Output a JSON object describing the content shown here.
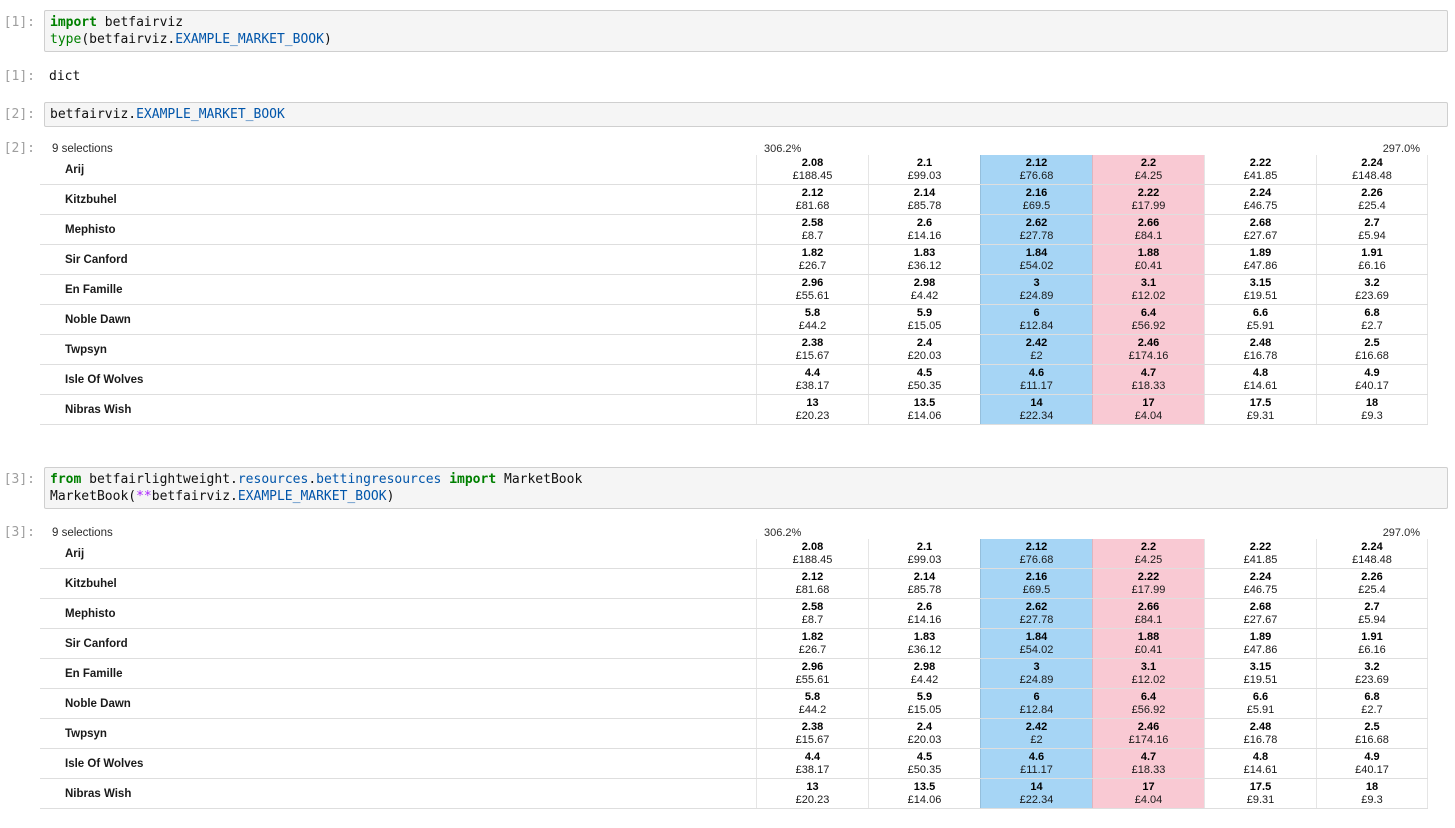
{
  "colors": {
    "back_best_cell": "#a6d5f5",
    "lay_best_cell": "#f9c9d3",
    "keyword_green": "#008000",
    "property_blue": "#0055aa",
    "operator_purple": "#aa22ff"
  },
  "notebook": {
    "cells": [
      {
        "kind": "code",
        "prompt": "[1]:",
        "code_lines": [
          [
            {
              "t": "import",
              "s": "kw"
            },
            {
              "t": " betfairviz",
              "s": "pl"
            }
          ],
          [
            {
              "t": "type",
              "s": "bi"
            },
            {
              "t": "(betfairviz.",
              "s": "pl"
            },
            {
              "t": "EXAMPLE_MARKET_BOOK",
              "s": "prop"
            },
            {
              "t": ")",
              "s": "pl"
            }
          ]
        ]
      },
      {
        "kind": "text_output",
        "prompt": "[1]:",
        "text": "dict"
      },
      {
        "kind": "code",
        "prompt": "[2]:",
        "code_lines": [
          [
            {
              "t": "betfairviz.",
              "s": "pl"
            },
            {
              "t": "EXAMPLE_MARKET_BOOK",
              "s": "prop"
            }
          ]
        ]
      },
      {
        "kind": "market_output",
        "prompt": "[2]:",
        "market": 0
      },
      {
        "kind": "code",
        "prompt": "[3]:",
        "code_lines": [
          [
            {
              "t": "from",
              "s": "kw"
            },
            {
              "t": " betfairlightweight.",
              "s": "pl"
            },
            {
              "t": "resources",
              "s": "prop"
            },
            {
              "t": ".",
              "s": "pl"
            },
            {
              "t": "bettingresources",
              "s": "prop"
            },
            {
              "t": " ",
              "s": "pl"
            },
            {
              "t": "import",
              "s": "kw"
            },
            {
              "t": " MarketBook",
              "s": "pl"
            }
          ],
          [
            {
              "t": "MarketBook(",
              "s": "pl"
            },
            {
              "t": "**",
              "s": "op"
            },
            {
              "t": "betfairviz.",
              "s": "pl"
            },
            {
              "t": "EXAMPLE_MARKET_BOOK",
              "s": "prop"
            },
            {
              "t": ")",
              "s": "pl"
            }
          ]
        ]
      },
      {
        "kind": "market_output",
        "prompt": "[3]:",
        "market": 0
      }
    ],
    "markets": [
      {
        "selections_label": "9 selections",
        "back_overround": "306.2%",
        "lay_overround": "297.0%",
        "column_styles": [
          "back-3",
          "back-2",
          "back-best",
          "lay-best",
          "lay-2",
          "lay-3"
        ],
        "runners": [
          {
            "name": "Arij",
            "ladder": [
              {
                "price": "2.08",
                "size": "£188.45"
              },
              {
                "price": "2.1",
                "size": "£99.03"
              },
              {
                "price": "2.12",
                "size": "£76.68"
              },
              {
                "price": "2.2",
                "size": "£4.25"
              },
              {
                "price": "2.22",
                "size": "£41.85"
              },
              {
                "price": "2.24",
                "size": "£148.48"
              }
            ]
          },
          {
            "name": "Kitzbuhel",
            "ladder": [
              {
                "price": "2.12",
                "size": "£81.68"
              },
              {
                "price": "2.14",
                "size": "£85.78"
              },
              {
                "price": "2.16",
                "size": "£69.5"
              },
              {
                "price": "2.22",
                "size": "£17.99"
              },
              {
                "price": "2.24",
                "size": "£46.75"
              },
              {
                "price": "2.26",
                "size": "£25.4"
              }
            ]
          },
          {
            "name": "Mephisto",
            "ladder": [
              {
                "price": "2.58",
                "size": "£8.7"
              },
              {
                "price": "2.6",
                "size": "£14.16"
              },
              {
                "price": "2.62",
                "size": "£27.78"
              },
              {
                "price": "2.66",
                "size": "£84.1"
              },
              {
                "price": "2.68",
                "size": "£27.67"
              },
              {
                "price": "2.7",
                "size": "£5.94"
              }
            ]
          },
          {
            "name": "Sir Canford",
            "ladder": [
              {
                "price": "1.82",
                "size": "£26.7"
              },
              {
                "price": "1.83",
                "size": "£36.12"
              },
              {
                "price": "1.84",
                "size": "£54.02"
              },
              {
                "price": "1.88",
                "size": "£0.41"
              },
              {
                "price": "1.89",
                "size": "£47.86"
              },
              {
                "price": "1.91",
                "size": "£6.16"
              }
            ]
          },
          {
            "name": "En Famille",
            "ladder": [
              {
                "price": "2.96",
                "size": "£55.61"
              },
              {
                "price": "2.98",
                "size": "£4.42"
              },
              {
                "price": "3",
                "size": "£24.89"
              },
              {
                "price": "3.1",
                "size": "£12.02"
              },
              {
                "price": "3.15",
                "size": "£19.51"
              },
              {
                "price": "3.2",
                "size": "£23.69"
              }
            ]
          },
          {
            "name": "Noble Dawn",
            "ladder": [
              {
                "price": "5.8",
                "size": "£44.2"
              },
              {
                "price": "5.9",
                "size": "£15.05"
              },
              {
                "price": "6",
                "size": "£12.84"
              },
              {
                "price": "6.4",
                "size": "£56.92"
              },
              {
                "price": "6.6",
                "size": "£5.91"
              },
              {
                "price": "6.8",
                "size": "£2.7"
              }
            ]
          },
          {
            "name": "Twpsyn",
            "ladder": [
              {
                "price": "2.38",
                "size": "£15.67"
              },
              {
                "price": "2.4",
                "size": "£20.03"
              },
              {
                "price": "2.42",
                "size": "£2"
              },
              {
                "price": "2.46",
                "size": "£174.16"
              },
              {
                "price": "2.48",
                "size": "£16.78"
              },
              {
                "price": "2.5",
                "size": "£16.68"
              }
            ]
          },
          {
            "name": "Isle Of Wolves",
            "ladder": [
              {
                "price": "4.4",
                "size": "£38.17"
              },
              {
                "price": "4.5",
                "size": "£50.35"
              },
              {
                "price": "4.6",
                "size": "£11.17"
              },
              {
                "price": "4.7",
                "size": "£18.33"
              },
              {
                "price": "4.8",
                "size": "£14.61"
              },
              {
                "price": "4.9",
                "size": "£40.17"
              }
            ]
          },
          {
            "name": "Nibras Wish",
            "ladder": [
              {
                "price": "13",
                "size": "£20.23"
              },
              {
                "price": "13.5",
                "size": "£14.06"
              },
              {
                "price": "14",
                "size": "£22.34"
              },
              {
                "price": "17",
                "size": "£4.04"
              },
              {
                "price": "17.5",
                "size": "£9.31"
              },
              {
                "price": "18",
                "size": "£9.3"
              }
            ]
          }
        ]
      }
    ]
  }
}
